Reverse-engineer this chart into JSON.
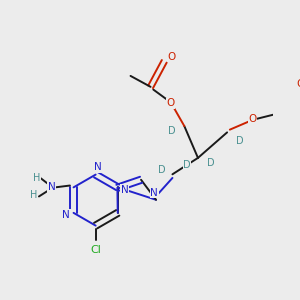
{
  "bg": "#ececec",
  "colors": {
    "bond": "#1a1a1a",
    "N": "#2222cc",
    "O": "#cc2200",
    "Cl": "#22aa22",
    "D": "#4a9090",
    "H": "#4a9090"
  },
  "lw": 1.4,
  "fs": 7.5
}
